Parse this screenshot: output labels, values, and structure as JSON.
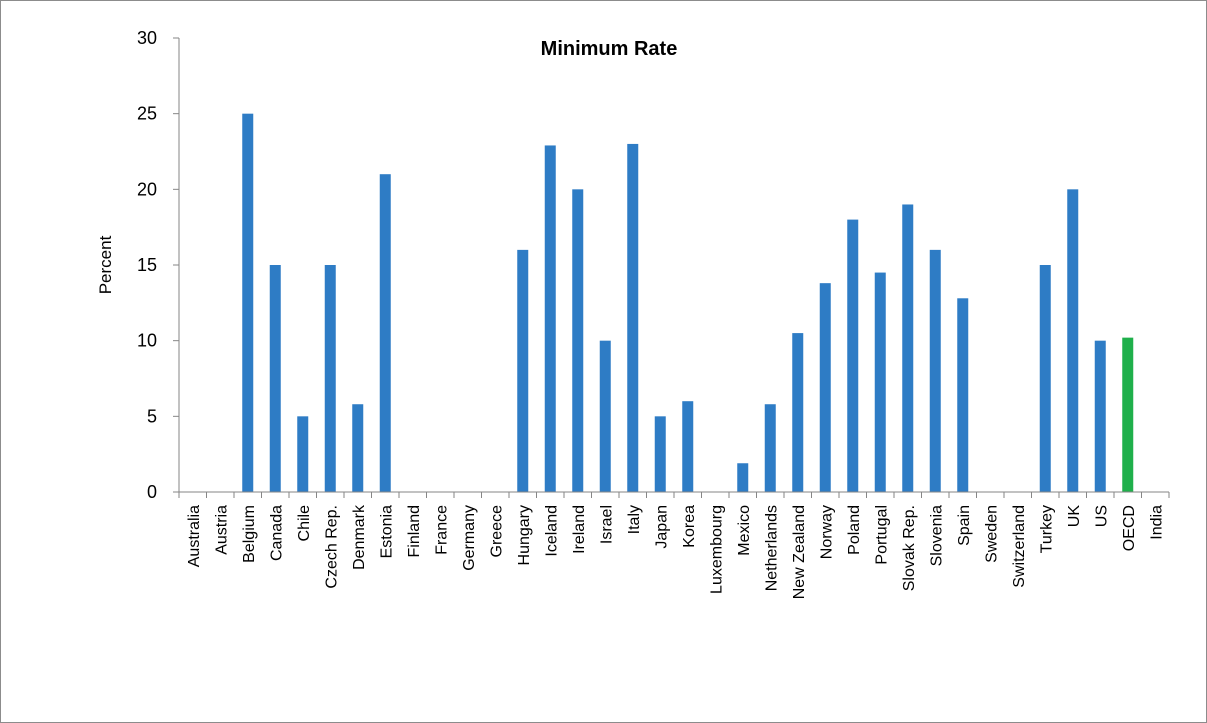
{
  "chart_data": {
    "type": "bar",
    "title": "Minimum Rate",
    "xlabel": "",
    "ylabel": "Percent",
    "ylim": [
      0,
      30
    ],
    "yticks": [
      0,
      5,
      10,
      15,
      20,
      25,
      30
    ],
    "grid": false,
    "legend": "none",
    "bar_color": "#2e7cc5",
    "highlight_color": "#1fb04b",
    "highlight_category": "OECD",
    "categories": [
      "Australia",
      "Austria",
      "Belgium",
      "Canada",
      "Chile",
      "Czech Rep.",
      "Denmark",
      "Estonia",
      "Finland",
      "France",
      "Germany",
      "Greece",
      "Hungary",
      "Iceland",
      "Ireland",
      "Israel",
      "Italy",
      "Japan",
      "Korea",
      "Luxembourg",
      "Mexico",
      "Netherlands",
      "New Zealand",
      "Norway",
      "Poland",
      "Portugal",
      "Slovak Rep.",
      "Slovenia",
      "Spain",
      "Sweden",
      "Switzerland",
      "Turkey",
      "UK",
      "US",
      "OECD",
      "India"
    ],
    "values": [
      0,
      0,
      25,
      15,
      5,
      15,
      5.8,
      21,
      0,
      0,
      0,
      0,
      16,
      22.9,
      20,
      10,
      23,
      5,
      6,
      0,
      1.9,
      5.8,
      10.5,
      13.8,
      18,
      14.5,
      19,
      16,
      12.8,
      0,
      0,
      15,
      20,
      10,
      10.2,
      0
    ]
  }
}
